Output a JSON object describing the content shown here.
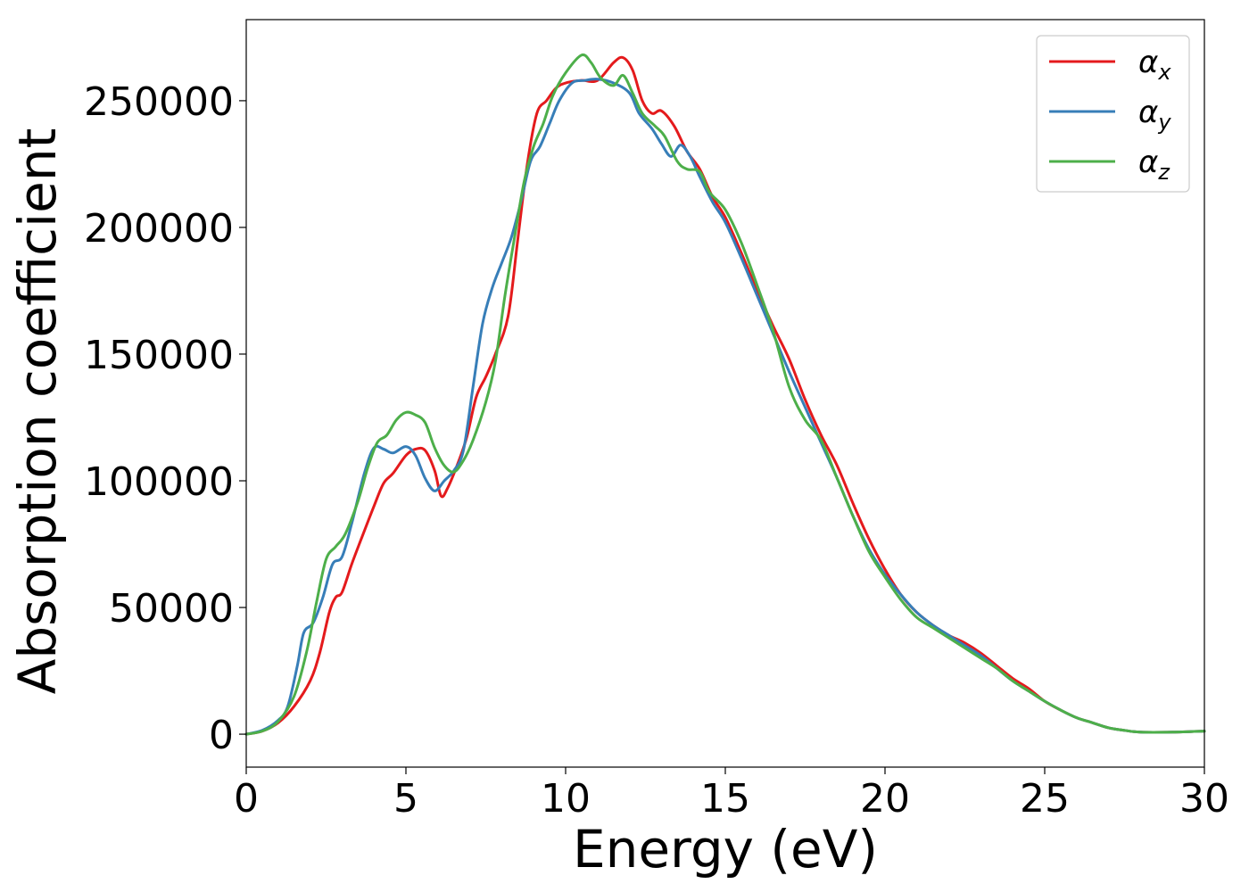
{
  "chart_data": {
    "type": "line",
    "title": "",
    "xlabel": "Energy (eV)",
    "ylabel": "Absorption coefficient",
    "xlim": [
      0,
      30
    ],
    "ylim": [
      -13000,
      282000
    ],
    "xticks": [
      0,
      5,
      10,
      15,
      20,
      25,
      30
    ],
    "yticks": [
      0,
      50000,
      100000,
      150000,
      200000,
      250000
    ],
    "grid": false,
    "legend_position": "top-right",
    "series": [
      {
        "name": "αx",
        "symbol": "α",
        "subscript": "x",
        "color": "#e41a1c",
        "points": [
          [
            0,
            0
          ],
          [
            0.5,
            1200
          ],
          [
            1,
            4500
          ],
          [
            1.5,
            11000
          ],
          [
            2,
            21000
          ],
          [
            2.3,
            32000
          ],
          [
            2.6,
            48000
          ],
          [
            2.8,
            54000
          ],
          [
            3,
            56000
          ],
          [
            3.3,
            67000
          ],
          [
            3.6,
            77000
          ],
          [
            4,
            90000
          ],
          [
            4.3,
            99000
          ],
          [
            4.6,
            103000
          ],
          [
            5,
            110000
          ],
          [
            5.3,
            112500
          ],
          [
            5.6,
            112000
          ],
          [
            5.9,
            104000
          ],
          [
            6.1,
            94000
          ],
          [
            6.3,
            97000
          ],
          [
            6.6,
            106000
          ],
          [
            6.9,
            117000
          ],
          [
            7.2,
            133000
          ],
          [
            7.5,
            141000
          ],
          [
            7.8,
            150000
          ],
          [
            8.2,
            165000
          ],
          [
            8.5,
            195000
          ],
          [
            8.8,
            225000
          ],
          [
            9.1,
            245000
          ],
          [
            9.4,
            250000
          ],
          [
            9.7,
            255000
          ],
          [
            10,
            257000
          ],
          [
            10.5,
            258000
          ],
          [
            11,
            258000
          ],
          [
            11.5,
            265000
          ],
          [
            11.8,
            267000
          ],
          [
            12.1,
            262000
          ],
          [
            12.4,
            250000
          ],
          [
            12.7,
            245000
          ],
          [
            13,
            246000
          ],
          [
            13.4,
            240000
          ],
          [
            13.8,
            230000
          ],
          [
            14.2,
            223000
          ],
          [
            14.6,
            212000
          ],
          [
            15,
            204000
          ],
          [
            15.5,
            190000
          ],
          [
            16,
            175000
          ],
          [
            16.5,
            161000
          ],
          [
            17,
            148000
          ],
          [
            17.5,
            132000
          ],
          [
            18,
            118000
          ],
          [
            18.5,
            106000
          ],
          [
            19,
            91000
          ],
          [
            19.5,
            77000
          ],
          [
            20,
            65000
          ],
          [
            20.5,
            55000
          ],
          [
            21,
            48000
          ],
          [
            21.5,
            43000
          ],
          [
            22,
            39000
          ],
          [
            22.5,
            36000
          ],
          [
            23,
            32000
          ],
          [
            23.5,
            27000
          ],
          [
            24,
            22000
          ],
          [
            24.5,
            18000
          ],
          [
            25,
            13000
          ],
          [
            25.5,
            9500
          ],
          [
            26,
            6500
          ],
          [
            26.5,
            4500
          ],
          [
            27,
            2500
          ],
          [
            27.5,
            1500
          ],
          [
            28,
            800
          ],
          [
            29,
            800
          ],
          [
            30,
            1200
          ]
        ]
      },
      {
        "name": "αy",
        "symbol": "α",
        "subscript": "y",
        "color": "#377eb8",
        "points": [
          [
            0,
            0
          ],
          [
            0.5,
            1500
          ],
          [
            1,
            5500
          ],
          [
            1.3,
            11000
          ],
          [
            1.6,
            27000
          ],
          [
            1.8,
            40000
          ],
          [
            2.1,
            44000
          ],
          [
            2.4,
            54000
          ],
          [
            2.7,
            67000
          ],
          [
            3,
            70000
          ],
          [
            3.3,
            83000
          ],
          [
            3.7,
            103000
          ],
          [
            4,
            113000
          ],
          [
            4.3,
            112500
          ],
          [
            4.6,
            111000
          ],
          [
            5,
            113500
          ],
          [
            5.3,
            110000
          ],
          [
            5.6,
            101000
          ],
          [
            5.9,
            96000
          ],
          [
            6.2,
            100000
          ],
          [
            6.5,
            104000
          ],
          [
            6.8,
            112000
          ],
          [
            7.1,
            137000
          ],
          [
            7.4,
            162000
          ],
          [
            7.7,
            176000
          ],
          [
            8,
            186000
          ],
          [
            8.3,
            196000
          ],
          [
            8.6,
            210000
          ],
          [
            8.9,
            226000
          ],
          [
            9.2,
            232000
          ],
          [
            9.5,
            241000
          ],
          [
            9.8,
            250000
          ],
          [
            10.2,
            257000
          ],
          [
            10.6,
            258000
          ],
          [
            11,
            258500
          ],
          [
            11.5,
            257000
          ],
          [
            12,
            253000
          ],
          [
            12.3,
            245000
          ],
          [
            12.7,
            239000
          ],
          [
            13,
            233000
          ],
          [
            13.3,
            228000
          ],
          [
            13.6,
            232500
          ],
          [
            13.9,
            228000
          ],
          [
            14.2,
            220000
          ],
          [
            14.6,
            210000
          ],
          [
            15,
            202000
          ],
          [
            15.5,
            188000
          ],
          [
            16,
            173000
          ],
          [
            16.5,
            158000
          ],
          [
            17,
            143000
          ],
          [
            17.5,
            129000
          ],
          [
            18,
            115000
          ],
          [
            18.5,
            101000
          ],
          [
            19,
            86000
          ],
          [
            19.5,
            73000
          ],
          [
            20,
            63000
          ],
          [
            20.5,
            55000
          ],
          [
            21,
            48000
          ],
          [
            21.5,
            43000
          ],
          [
            22,
            39000
          ],
          [
            22.5,
            35000
          ],
          [
            23,
            31000
          ],
          [
            23.5,
            26000
          ],
          [
            24,
            21000
          ],
          [
            24.5,
            17000
          ],
          [
            25,
            13000
          ],
          [
            25.5,
            9500
          ],
          [
            26,
            6500
          ],
          [
            26.5,
            4500
          ],
          [
            27,
            2500
          ],
          [
            27.5,
            1500
          ],
          [
            28,
            800
          ],
          [
            29,
            800
          ],
          [
            30,
            1200
          ]
        ]
      },
      {
        "name": "αz",
        "symbol": "α",
        "subscript": "z",
        "color": "#4daf4a",
        "points": [
          [
            0,
            0
          ],
          [
            0.5,
            1200
          ],
          [
            1,
            5000
          ],
          [
            1.5,
            15000
          ],
          [
            1.9,
            33000
          ],
          [
            2.2,
            52000
          ],
          [
            2.5,
            69000
          ],
          [
            2.8,
            74000
          ],
          [
            3.1,
            79000
          ],
          [
            3.5,
            92000
          ],
          [
            3.8,
            105000
          ],
          [
            4.1,
            115000
          ],
          [
            4.4,
            118000
          ],
          [
            4.7,
            124000
          ],
          [
            5,
            127000
          ],
          [
            5.3,
            126000
          ],
          [
            5.6,
            123000
          ],
          [
            5.9,
            113000
          ],
          [
            6.2,
            106000
          ],
          [
            6.5,
            103500
          ],
          [
            6.8,
            108000
          ],
          [
            7.1,
            116000
          ],
          [
            7.5,
            131000
          ],
          [
            7.8,
            147000
          ],
          [
            8.1,
            173000
          ],
          [
            8.4,
            196000
          ],
          [
            8.7,
            218000
          ],
          [
            9,
            232000
          ],
          [
            9.3,
            241000
          ],
          [
            9.6,
            252000
          ],
          [
            10,
            261000
          ],
          [
            10.5,
            268000
          ],
          [
            10.8,
            265000
          ],
          [
            11.1,
            259000
          ],
          [
            11.5,
            256000
          ],
          [
            11.8,
            260000
          ],
          [
            12.1,
            253000
          ],
          [
            12.4,
            245000
          ],
          [
            12.8,
            240000
          ],
          [
            13.1,
            236000
          ],
          [
            13.5,
            226000
          ],
          [
            13.8,
            223000
          ],
          [
            14.2,
            222000
          ],
          [
            14.5,
            214000
          ],
          [
            15,
            207000
          ],
          [
            15.5,
            194000
          ],
          [
            16,
            177000
          ],
          [
            16.5,
            159000
          ],
          [
            17,
            137000
          ],
          [
            17.5,
            124000
          ],
          [
            18,
            116000
          ],
          [
            18.5,
            101000
          ],
          [
            19,
            86000
          ],
          [
            19.5,
            72000
          ],
          [
            20,
            62000
          ],
          [
            20.5,
            53000
          ],
          [
            21,
            46000
          ],
          [
            21.5,
            42000
          ],
          [
            22,
            38000
          ],
          [
            22.5,
            34000
          ],
          [
            23,
            30000
          ],
          [
            23.5,
            26000
          ],
          [
            24,
            21000
          ],
          [
            24.5,
            17000
          ],
          [
            25,
            13000
          ],
          [
            25.5,
            9500
          ],
          [
            26,
            6500
          ],
          [
            26.5,
            4500
          ],
          [
            27,
            2500
          ],
          [
            27.5,
            1500
          ],
          [
            28,
            800
          ],
          [
            29,
            800
          ],
          [
            30,
            1200
          ]
        ]
      }
    ]
  }
}
